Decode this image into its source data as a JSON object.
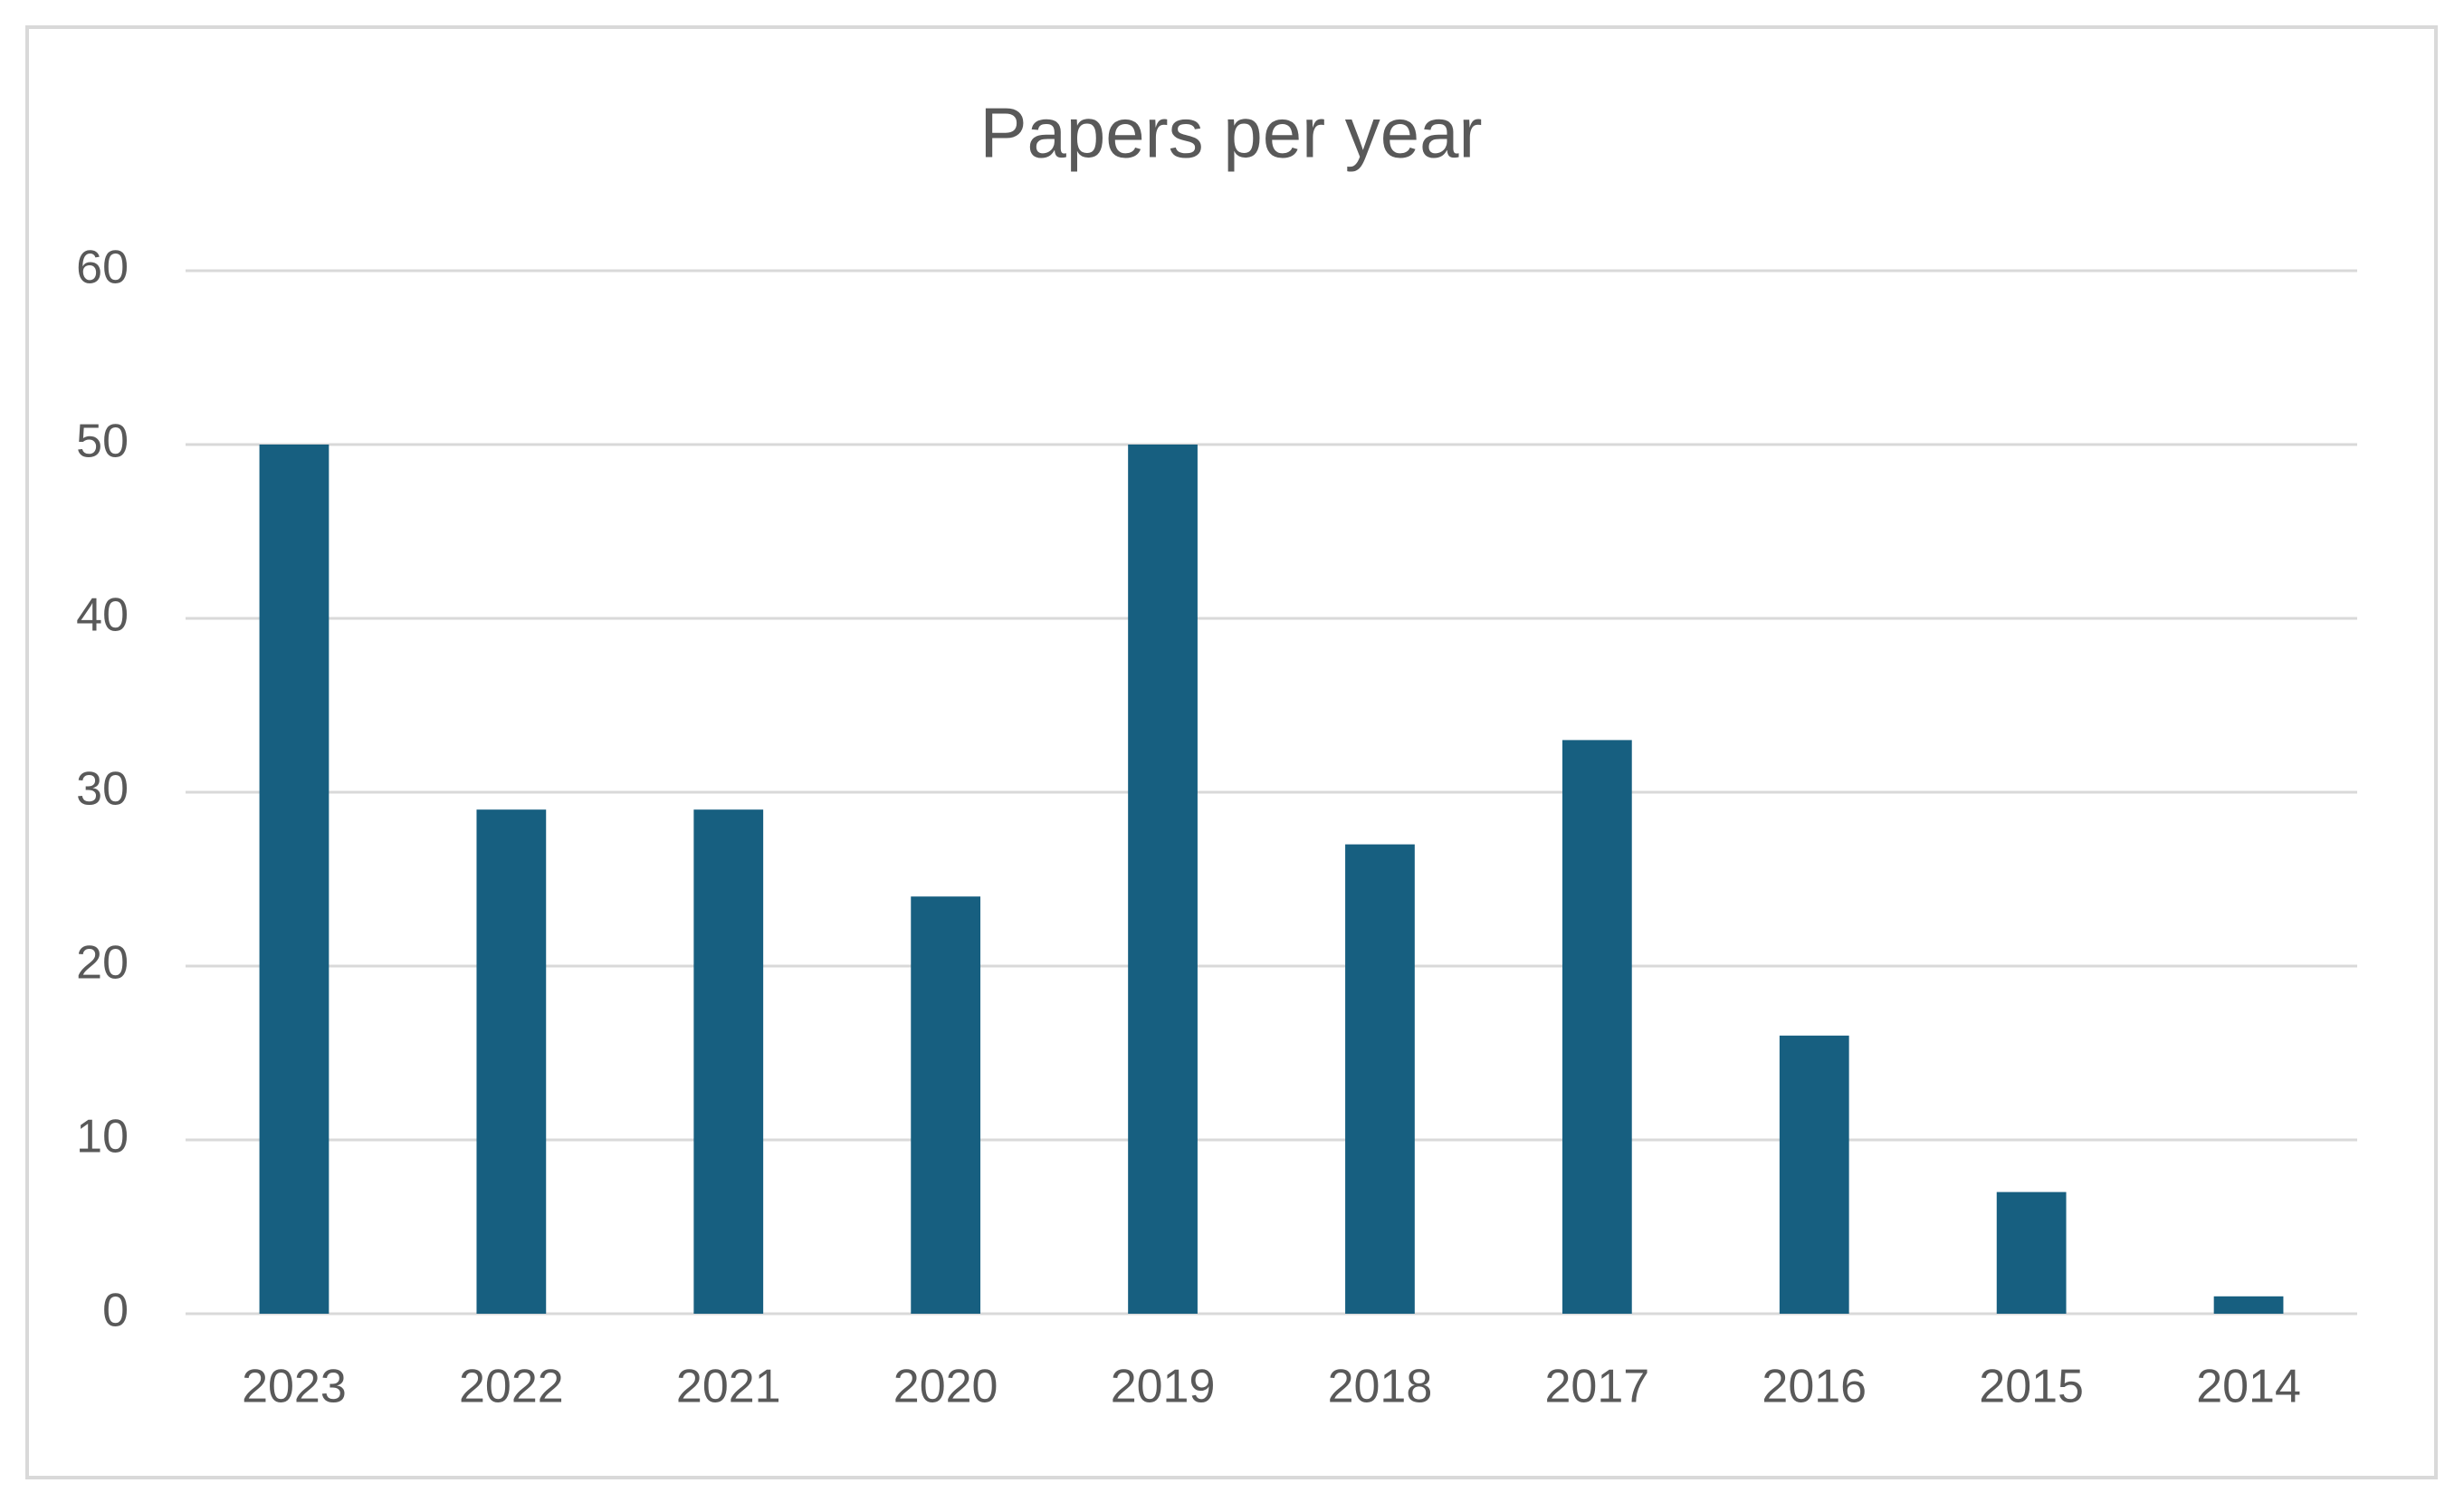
{
  "chart_data": {
    "type": "bar",
    "title": "Papers per year",
    "categories": [
      "2023",
      "2022",
      "2021",
      "2020",
      "2019",
      "2018",
      "2017",
      "2016",
      "2015",
      "2014"
    ],
    "values": [
      50,
      29,
      29,
      24,
      50,
      27,
      33,
      16,
      7,
      1
    ],
    "color": "#175f80",
    "ylim": [
      0,
      60
    ],
    "yticks": [
      0,
      10,
      20,
      30,
      40,
      50,
      60
    ],
    "grid": true
  }
}
